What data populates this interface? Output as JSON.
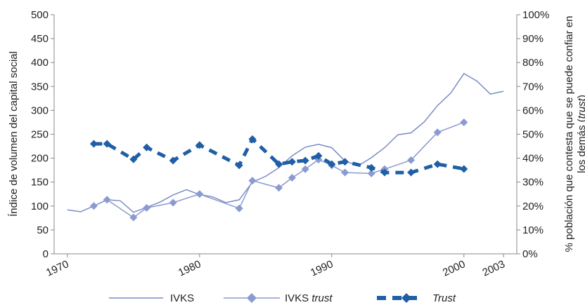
{
  "chart_data": {
    "type": "line",
    "x_ticks": [
      "1970",
      "1980",
      "1990",
      "2000",
      "2003"
    ],
    "xlim": [
      1969,
      2004
    ],
    "ylim_left": [
      0,
      500
    ],
    "ylim_right": [
      0,
      100
    ],
    "y_ticks_left": [
      "0",
      "50",
      "100",
      "150",
      "200",
      "250",
      "300",
      "350",
      "400",
      "450",
      "500"
    ],
    "y_ticks_right": [
      "0%",
      "10%",
      "20%",
      "30%",
      "40%",
      "50%",
      "60%",
      "70%",
      "80%",
      "90%",
      "100%"
    ],
    "ylabel_left": "Índice de volumen del capital social",
    "ylabel_right_line1": "% población que contesta que se puede confiar en",
    "ylabel_right_line2_prefix": "los demás (",
    "ylabel_right_line2_italic": "trust",
    "ylabel_right_line2_suffix": ")",
    "grid": false,
    "legend_position": "bottom",
    "series": [
      {
        "name": "IVKS",
        "axis": "left",
        "style": "line",
        "color": "#7a8cc4",
        "points": [
          [
            1970,
            92
          ],
          [
            1971,
            88
          ],
          [
            1972,
            100
          ],
          [
            1973,
            113
          ],
          [
            1974,
            111
          ],
          [
            1975,
            87
          ],
          [
            1976,
            97
          ],
          [
            1977,
            108
          ],
          [
            1978,
            123
          ],
          [
            1979,
            134
          ],
          [
            1980,
            124
          ],
          [
            1981,
            119
          ],
          [
            1982,
            107
          ],
          [
            1983,
            113
          ],
          [
            1984,
            150
          ],
          [
            1985,
            162
          ],
          [
            1986,
            180
          ],
          [
            1987,
            205
          ],
          [
            1988,
            223
          ],
          [
            1989,
            229
          ],
          [
            1990,
            222
          ],
          [
            1991,
            194
          ],
          [
            1992,
            184
          ],
          [
            1993,
            201
          ],
          [
            1994,
            222
          ],
          [
            1995,
            249
          ],
          [
            1996,
            253
          ],
          [
            1997,
            276
          ],
          [
            1998,
            310
          ],
          [
            1999,
            336
          ],
          [
            2000,
            377
          ],
          [
            2001,
            361
          ],
          [
            2002,
            334
          ],
          [
            2003,
            340
          ]
        ]
      },
      {
        "name": "IVKS",
        "name_italic": "trust",
        "axis": "left",
        "style": "line-diamond",
        "color": "#8b9ad0",
        "points": [
          [
            1972,
            100
          ],
          [
            1973,
            113
          ],
          [
            1975,
            76
          ],
          [
            1976,
            96
          ],
          [
            1978,
            107
          ],
          [
            1980,
            125
          ],
          [
            1983,
            95
          ],
          [
            1984,
            153
          ],
          [
            1986,
            138
          ],
          [
            1987,
            159
          ],
          [
            1988,
            177
          ],
          [
            1989,
            197
          ],
          [
            1990,
            185
          ],
          [
            1991,
            170
          ],
          [
            1993,
            168
          ],
          [
            1994,
            177
          ],
          [
            1996,
            196
          ],
          [
            1998,
            254
          ],
          [
            2000,
            275
          ]
        ]
      },
      {
        "name": "Trust",
        "axis": "right",
        "style": "dash-diamond",
        "color": "#1f5fa5",
        "points": [
          [
            1972,
            46
          ],
          [
            1973,
            46
          ],
          [
            1975,
            39.5
          ],
          [
            1976,
            44.5
          ],
          [
            1978,
            39
          ],
          [
            1980,
            45.5
          ],
          [
            1983,
            37
          ],
          [
            1984,
            48
          ],
          [
            1986,
            37.5
          ],
          [
            1987,
            38.5
          ],
          [
            1988,
            39
          ],
          [
            1989,
            41
          ],
          [
            1990,
            37.5
          ],
          [
            1991,
            38.5
          ],
          [
            1993,
            36
          ],
          [
            1994,
            34
          ],
          [
            1996,
            34
          ],
          [
            1998,
            37.5
          ],
          [
            2000,
            35.5
          ]
        ]
      }
    ]
  },
  "legend": [
    {
      "label": "IVKS",
      "italic": ""
    },
    {
      "label": "IVKS ",
      "italic": "trust"
    },
    {
      "label": "",
      "italic": "Trust"
    }
  ]
}
